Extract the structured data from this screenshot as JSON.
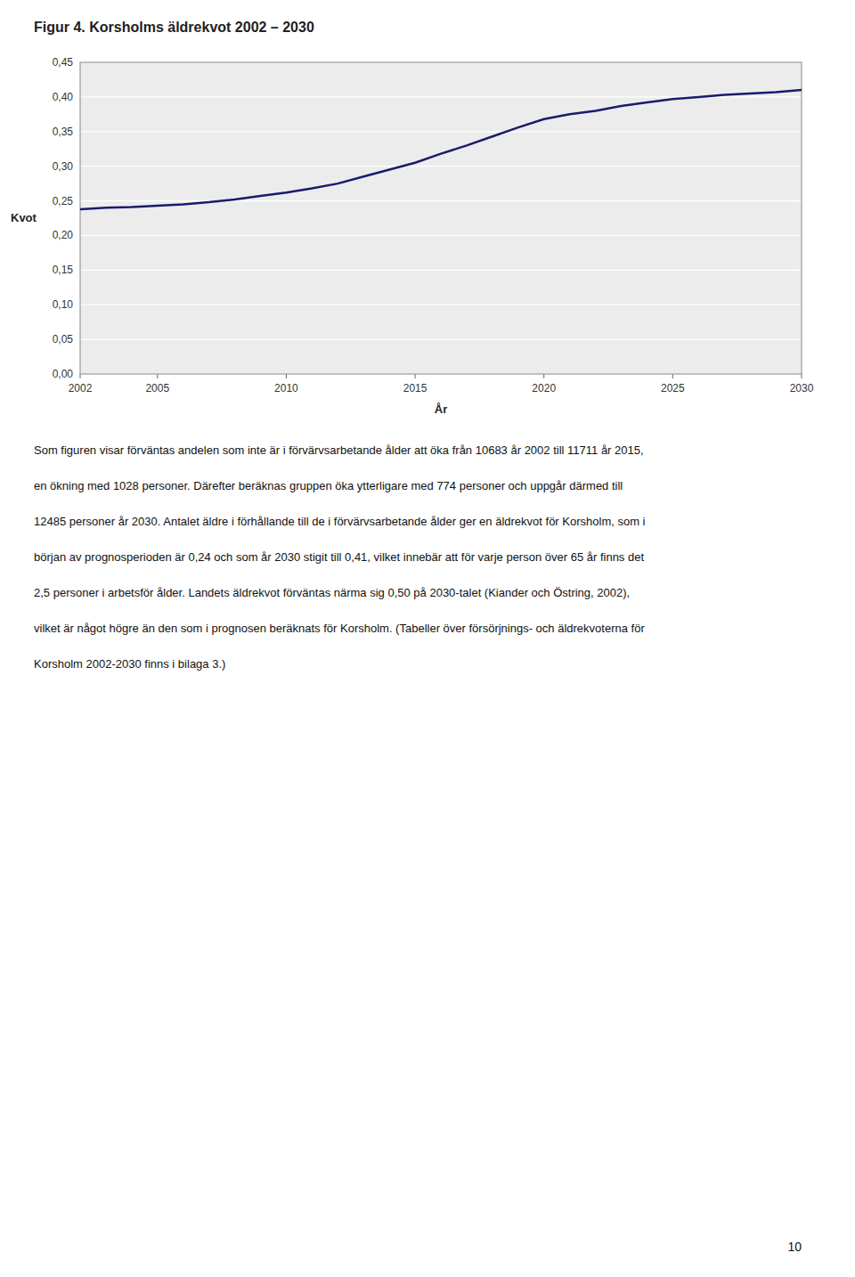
{
  "chart_data": {
    "type": "line",
    "title": "Figur 4. Korsholms äldrekvot 2002 – 2030",
    "xlabel": "År",
    "ylabel": "Kvot",
    "color": "#1a1a6e",
    "x": [
      2002,
      2003,
      2004,
      2005,
      2006,
      2007,
      2008,
      2009,
      2010,
      2011,
      2012,
      2013,
      2014,
      2015,
      2016,
      2017,
      2018,
      2019,
      2020,
      2021,
      2022,
      2023,
      2024,
      2025,
      2026,
      2027,
      2028,
      2029,
      2030
    ],
    "values": [
      0.238,
      0.24,
      0.241,
      0.243,
      0.245,
      0.248,
      0.252,
      0.257,
      0.262,
      0.268,
      0.275,
      0.285,
      0.295,
      0.305,
      0.318,
      0.33,
      0.343,
      0.356,
      0.368,
      0.375,
      0.38,
      0.387,
      0.392,
      0.397,
      0.4,
      0.403,
      0.405,
      0.407,
      0.41
    ],
    "xlim": [
      2002,
      2030
    ],
    "xticks": [
      2002,
      2005,
      2010,
      2015,
      2020,
      2025,
      2030
    ],
    "ylim": [
      0.0,
      0.45
    ],
    "yticks": [
      {
        "value": 0.0,
        "label": "0,00"
      },
      {
        "value": 0.05,
        "label": "0,05"
      },
      {
        "value": 0.1,
        "label": "0,10"
      },
      {
        "value": 0.15,
        "label": "0,15"
      },
      {
        "value": 0.2,
        "label": "0,20"
      },
      {
        "value": 0.25,
        "label": "0,25"
      },
      {
        "value": 0.3,
        "label": "0,30"
      },
      {
        "value": 0.35,
        "label": "0,35"
      },
      {
        "value": 0.4,
        "label": "0,40"
      },
      {
        "value": 0.45,
        "label": "0,45"
      }
    ],
    "grid": true
  },
  "body_text_lines": [
    "Som figuren visar förväntas andelen som inte är i förvärvsarbetande ålder att öka från 10683 år 2002 till 11711 år 2015,",
    "en ökning med 1028 personer. Därefter beräknas gruppen öka ytterligare med 774 personer och uppgår därmed till",
    "12485 personer år 2030. Antalet äldre i förhållande till de i förvärvsarbetande ålder ger en äldrekvot för Korsholm, som i",
    "början av prognosperioden är 0,24 och som år 2030 stigit till 0,41, vilket innebär att för varje person över 65 år finns det",
    "2,5 personer i arbetsför ålder. Landets äldrekvot förväntas närma sig 0,50 på 2030-talet (Kiander och Östring, 2002),",
    "vilket är något högre än den som i prognosen beräknats för Korsholm. (Tabeller över försörjnings- och äldrekvoterna för",
    "Korsholm 2002-2030 finns i bilaga 3.)"
  ],
  "page_number": "10"
}
